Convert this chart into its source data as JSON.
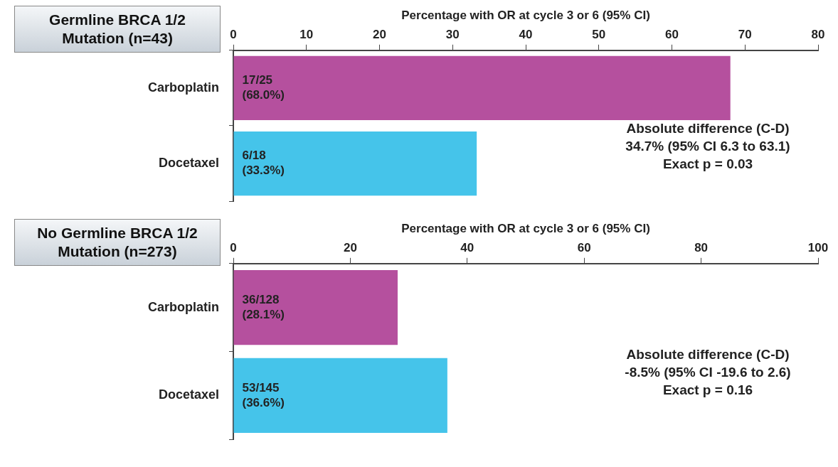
{
  "chart_data": [
    {
      "type": "bar",
      "orientation": "horizontal",
      "title": "Germline BRCA 1/2 Mutation (n=43)",
      "xlabel": "Percentage with OR at cycle 3 or 6 (95% CI)",
      "categories": [
        "Carboplatin",
        "Docetaxel"
      ],
      "values": [
        68.0,
        33.3
      ],
      "colors": [
        "#b5509e",
        "#45c4ea"
      ],
      "value_labels": [
        "17/25\n(68.0%)",
        "6/18\n(33.3%)"
      ],
      "xlim": [
        0,
        80
      ],
      "xticks": [
        0,
        10,
        20,
        30,
        40,
        50,
        60,
        70,
        80
      ],
      "grid": false,
      "legend": false,
      "annotations": [
        "Absolute difference (C-D)",
        "34.7% (95% CI 6.3 to 63.1)",
        "Exact p = 0.03"
      ]
    },
    {
      "type": "bar",
      "orientation": "horizontal",
      "title": "No Germline BRCA 1/2 Mutation (n=273)",
      "xlabel": "Percentage with OR at cycle 3 or 6 (95% CI)",
      "categories": [
        "Carboplatin",
        "Docetaxel"
      ],
      "values": [
        28.1,
        36.6
      ],
      "colors": [
        "#b5509e",
        "#45c4ea"
      ],
      "value_labels": [
        "36/128\n(28.1%)",
        "53/145\n(36.6%)"
      ],
      "xlim": [
        0,
        100
      ],
      "xticks": [
        0,
        20,
        40,
        60,
        80,
        100
      ],
      "grid": false,
      "legend": false,
      "annotations": [
        "Absolute difference (C-D)",
        "-8.5% (95% CI -19.6 to 2.6)",
        "Exact p = 0.16"
      ]
    }
  ]
}
